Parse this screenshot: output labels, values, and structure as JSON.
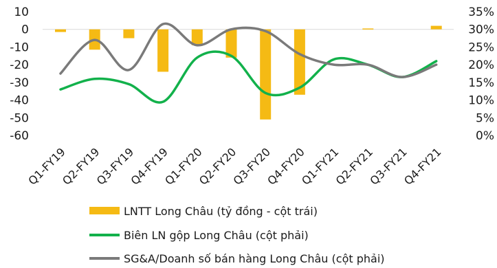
{
  "colors": {
    "bar": "#F5BA14",
    "gross_margin": "#12B14B",
    "sga_ratio": "#7A7A7A",
    "text": "#1a1a1a"
  },
  "chart_data": {
    "type": "bar+line",
    "title": "",
    "categories": [
      "Q1-FY19",
      "Q2-FY19",
      "Q3-FY19",
      "Q4-FY19",
      "Q1-FY20",
      "Q2-FY20",
      "Q3-FY20",
      "Q4-FY20",
      "Q1-FY21",
      "Q2-FY21",
      "Q3-FY21",
      "Q4-FY21"
    ],
    "y_left": {
      "ticks": [
        "10",
        "0",
        "-10",
        "-20",
        "-30",
        "-40",
        "-50",
        "-60"
      ],
      "ylim": [
        -60,
        10
      ]
    },
    "y_right": {
      "ticks": [
        "35%",
        "30%",
        "25%",
        "20%",
        "15%",
        "10%",
        "5%",
        "0%"
      ],
      "ylim": [
        0,
        35
      ]
    },
    "series": [
      {
        "name": "LNTT Long Châu (tỷ đồng - cột trái)",
        "type": "bar",
        "axis": "left",
        "values": [
          -1.5,
          -11.5,
          -5,
          -24,
          -9,
          -16,
          -51,
          -37,
          0,
          0.5,
          0,
          2
        ]
      },
      {
        "name": "Biên LN gộp Long Châu (cột phải)",
        "type": "line",
        "axis": "right",
        "values": [
          13,
          16,
          14.5,
          9.5,
          22,
          22.5,
          12,
          13.5,
          21.5,
          20,
          16.5,
          21
        ]
      },
      {
        "name": "SG&A/Doanh số bán hàng Long Châu (cột phải)",
        "type": "line",
        "axis": "right",
        "values": [
          17.5,
          27,
          18.5,
          31.5,
          25.5,
          30,
          29.5,
          23,
          20,
          20,
          16.5,
          20
        ]
      }
    ],
    "legend": "bottom",
    "grid": false
  }
}
